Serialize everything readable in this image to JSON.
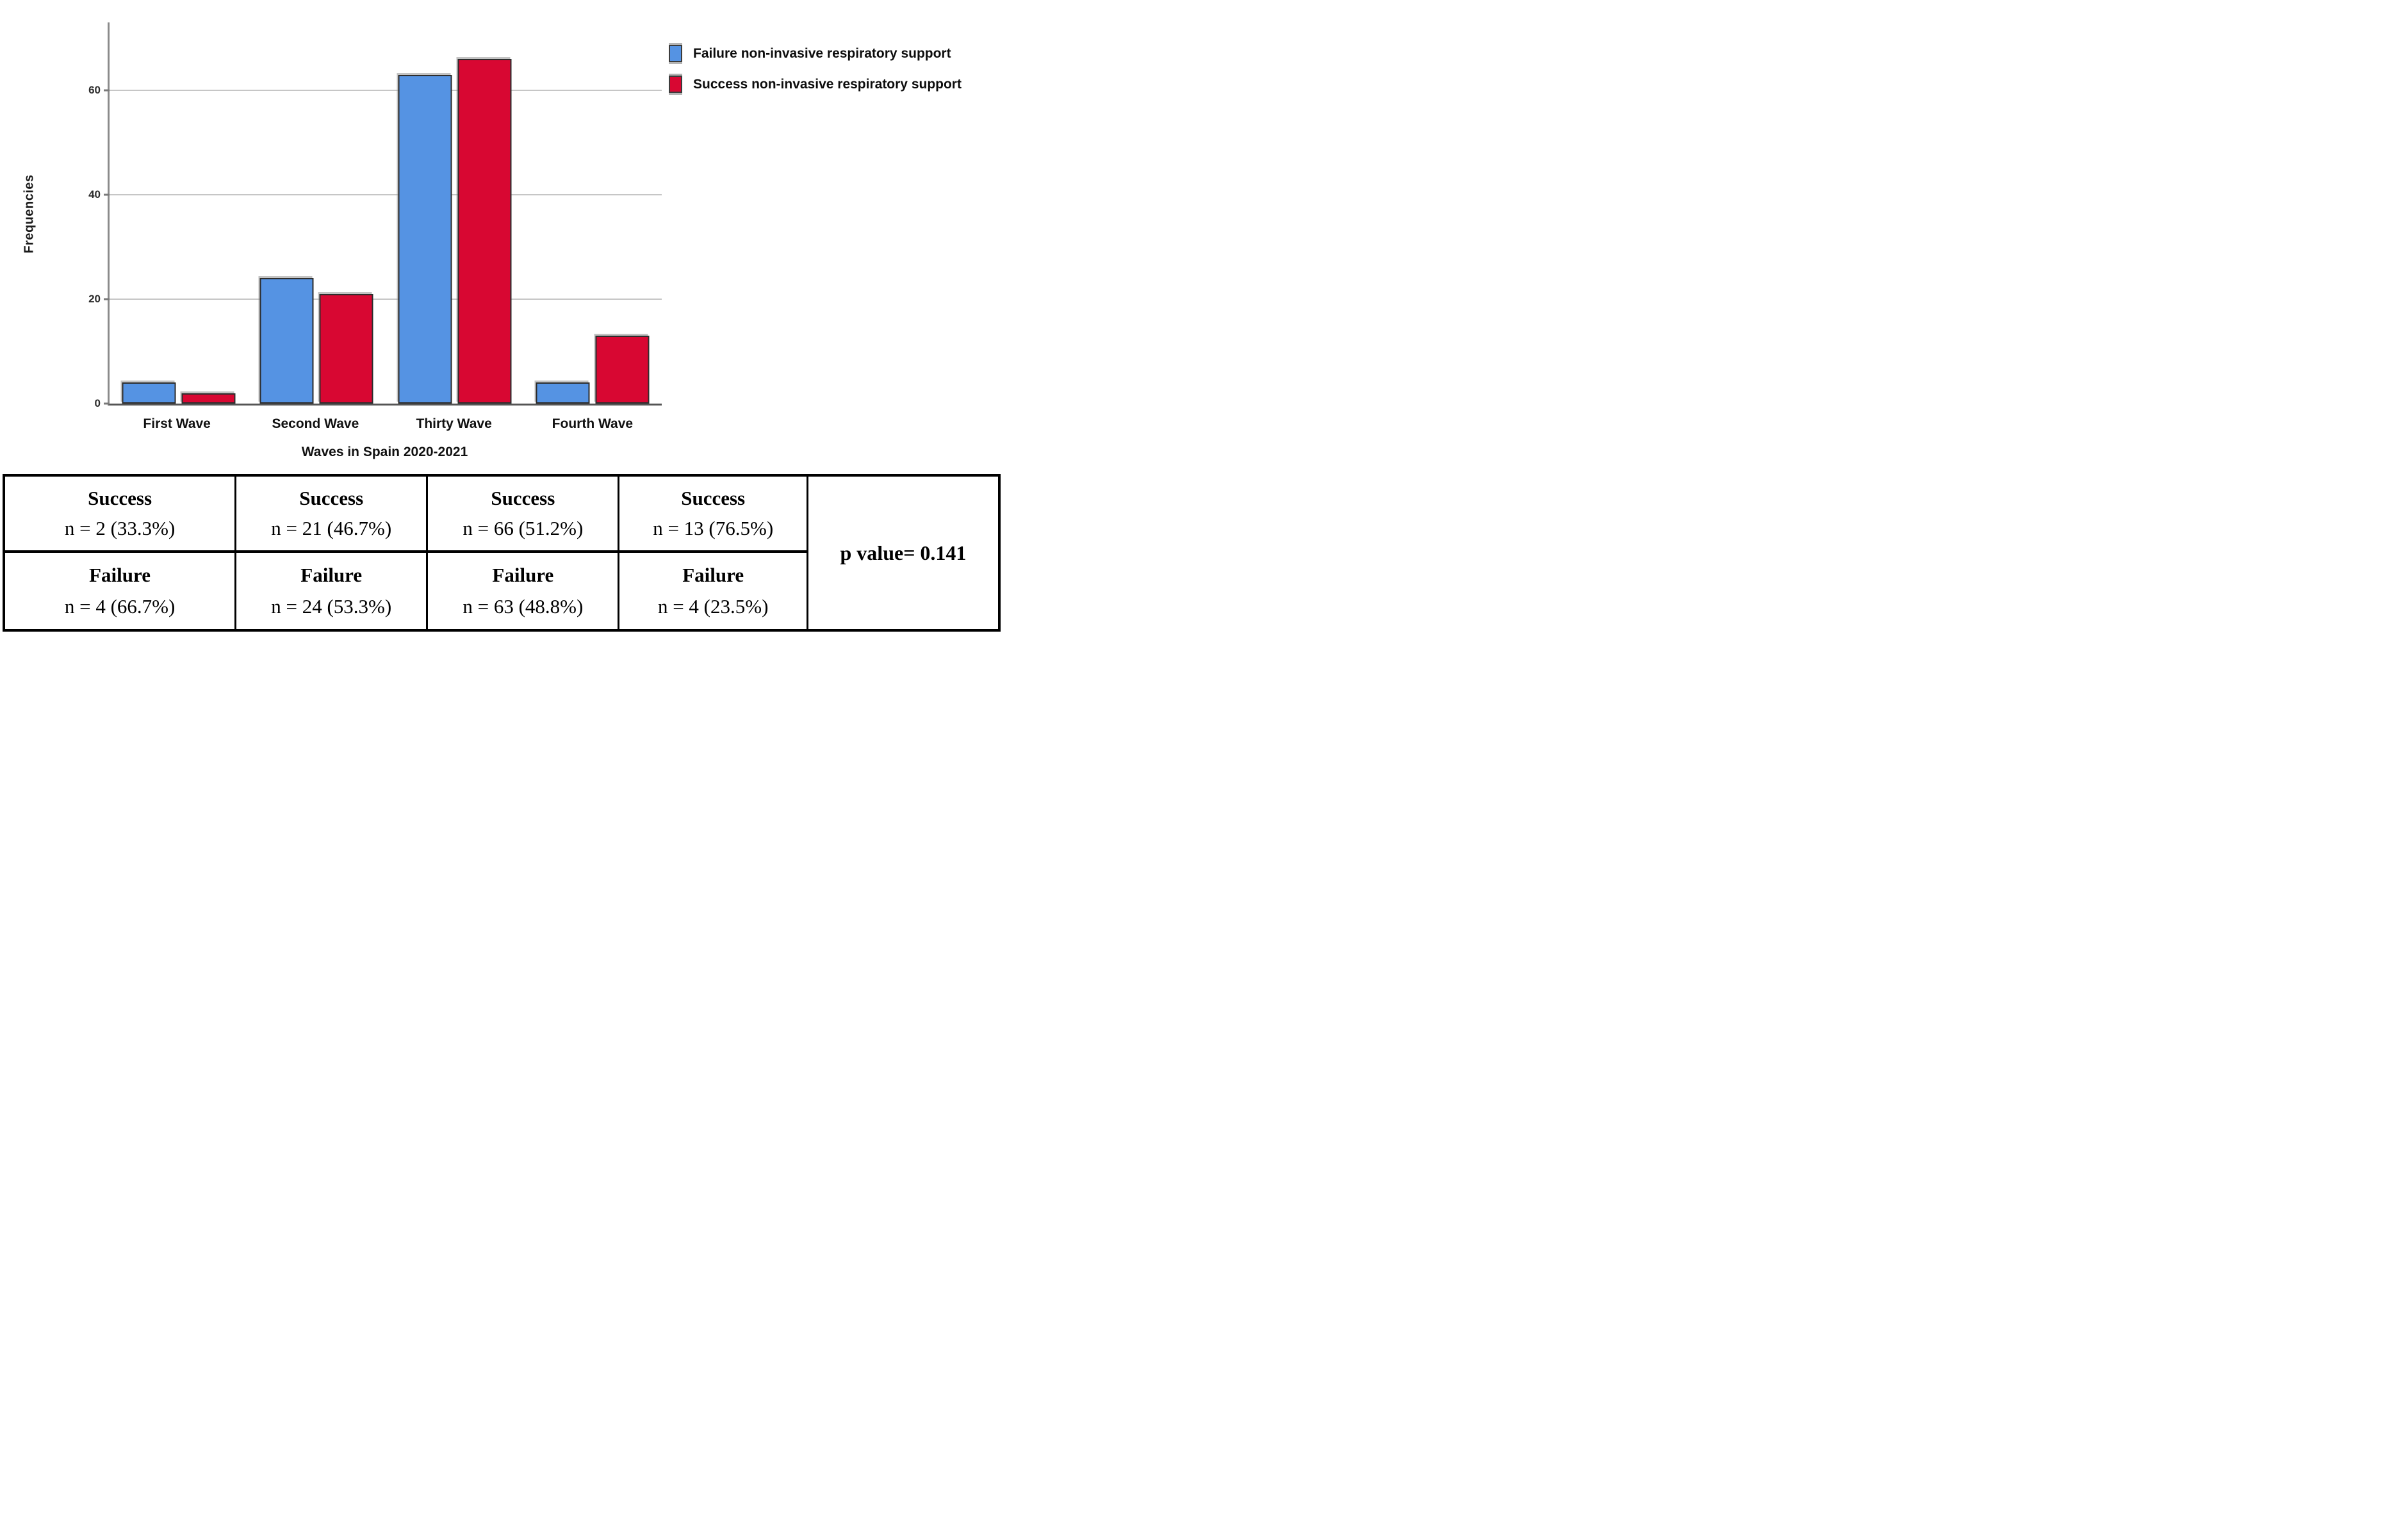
{
  "chart_data": {
    "type": "bar",
    "title": "",
    "categories": [
      "First Wave",
      "Second Wave",
      "Thirty Wave",
      "Fourth Wave"
    ],
    "series": [
      {
        "name": "Failure non-invasive respiratory support",
        "color": "#5593E3",
        "values": [
          4,
          24,
          63,
          4
        ]
      },
      {
        "name": "Success non-invasive respiratory support",
        "color": "#D80732",
        "values": [
          2,
          21,
          66,
          13
        ]
      }
    ],
    "xlabel": "Waves in Spain 2020-2021",
    "ylabel": "Frequencies",
    "yticks": [
      0,
      20,
      40,
      60
    ],
    "ylim": [
      0,
      73
    ],
    "grid": true,
    "legend_position": "top-right",
    "gridline_color": "#c6c6c6",
    "axis_color": "#6e6e6e",
    "bar_border_color": "#2d2d2d"
  },
  "table": {
    "columns": [
      {
        "wave": "first-wave",
        "success_label": "Success",
        "success_value": "n = 2 (33.3%)",
        "failure_label": "Failure",
        "failure_value": "n = 4 (66.7%)"
      },
      {
        "wave": "second-wave",
        "success_label": "Success",
        "success_value": "n = 21 (46.7%)",
        "failure_label": "Failure",
        "failure_value": "n = 24 (53.3%)"
      },
      {
        "wave": "thirty-wave",
        "success_label": "Success",
        "success_value": "n = 66 (51.2%)",
        "failure_label": "Failure",
        "failure_value": "n = 63 (48.8%)"
      },
      {
        "wave": "fourth-wave",
        "success_label": "Success",
        "success_value": "n = 13 (76.5%)",
        "failure_label": "Failure",
        "failure_value": "n = 4 (23.5%)"
      }
    ],
    "p_value_label": "p value= 0.141"
  }
}
